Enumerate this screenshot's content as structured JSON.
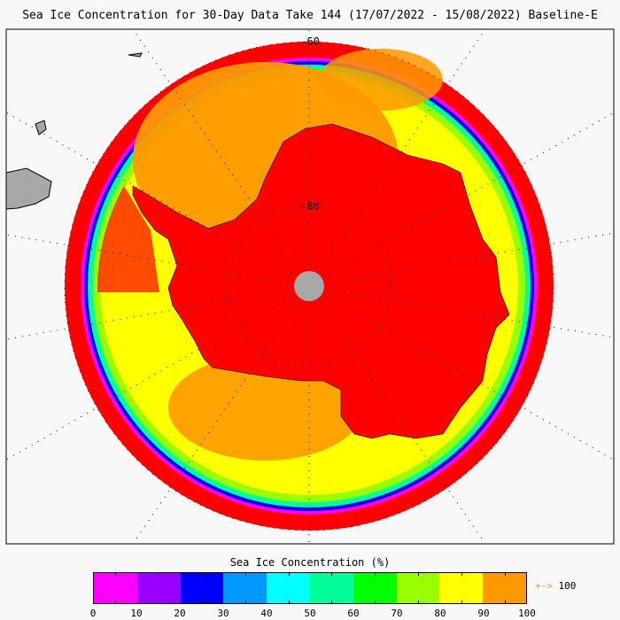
{
  "title": "Sea Ice Concentration for 30-Day Data Take 144 (17/07/2022 - 15/08/2022) Baseline-E",
  "map": {
    "projection": "south-polar-stereographic",
    "latitude_labels": [
      "-60",
      "-80"
    ],
    "land_color": "#a8a8a8",
    "ice_shelf_color": "#ff0000",
    "pole_hole_color": "#a8a8a8"
  },
  "colorbar": {
    "title": "Sea Ice Concentration (%)",
    "colors": [
      "#ff00ff",
      "#9900ff",
      "#0000ff",
      "#0099ff",
      "#00ffff",
      "#00ff99",
      "#00ff00",
      "#99ff00",
      "#ffff00",
      "#ff9900"
    ],
    "ticks": [
      "0",
      "10",
      "20",
      "30",
      "40",
      "50",
      "60",
      "70",
      "80",
      "90",
      "100"
    ],
    "overflow_arrow": "+->",
    "overflow_label": "100",
    "overflow_color": "#f39a00"
  }
}
